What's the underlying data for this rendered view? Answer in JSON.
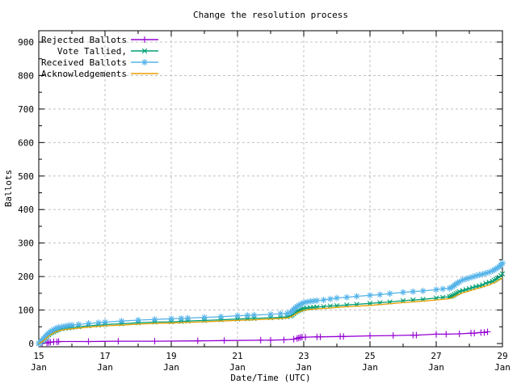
{
  "chart_data": {
    "type": "line",
    "title": "Change the resolution process",
    "xlabel": "Date/Time (UTC)",
    "ylabel": "Ballots",
    "xlim": [
      15,
      29
    ],
    "ylim": [
      0,
      900
    ],
    "grid": true,
    "legend_position": "top-left",
    "x_tick_month": "Jan",
    "x_major_ticks": [
      {
        "value": 15,
        "label": "15",
        "sublabel": "Jan"
      },
      {
        "value": 17,
        "label": "17",
        "sublabel": "Jan"
      },
      {
        "value": 19,
        "label": "19",
        "sublabel": "Jan"
      },
      {
        "value": 21,
        "label": "21",
        "sublabel": "Jan"
      },
      {
        "value": 23,
        "label": "23",
        "sublabel": "Jan"
      },
      {
        "value": 25,
        "label": "25",
        "sublabel": "Jan"
      },
      {
        "value": 27,
        "label": "27",
        "sublabel": "Jan"
      },
      {
        "value": 29,
        "label": "29",
        "sublabel": "Jan"
      }
    ],
    "x_minor_ticks": [
      16,
      18,
      20,
      22,
      24,
      26,
      28
    ],
    "y_ticks": [
      0,
      100,
      200,
      300,
      400,
      500,
      600,
      700,
      800,
      900
    ],
    "y_minor_ticks": [
      50,
      150,
      250,
      350,
      450,
      550,
      650,
      750,
      850
    ],
    "style": {
      "background": "#ffffff",
      "border_color": "#000000",
      "grid_color": "#c0c0c0",
      "text_color": "#000000"
    },
    "series": [
      {
        "name": "Rejected Ballots",
        "color": "#9400d3",
        "marker": "plus",
        "points": [
          [
            15.0,
            0
          ],
          [
            15.1,
            1
          ],
          [
            15.25,
            2
          ],
          [
            15.3,
            3
          ],
          [
            15.35,
            4
          ],
          [
            15.45,
            5
          ],
          [
            15.55,
            5
          ],
          [
            15.6,
            6
          ],
          [
            16.5,
            6
          ],
          [
            17.4,
            7
          ],
          [
            18.5,
            7
          ],
          [
            19.8,
            8
          ],
          [
            20.6,
            9
          ],
          [
            21.7,
            10
          ],
          [
            22.0,
            10
          ],
          [
            22.4,
            11
          ],
          [
            22.7,
            13
          ],
          [
            22.8,
            15
          ],
          [
            22.85,
            17
          ],
          [
            22.9,
            18
          ],
          [
            22.95,
            19
          ],
          [
            23.05,
            19
          ],
          [
            23.4,
            20
          ],
          [
            23.5,
            20
          ],
          [
            24.1,
            21
          ],
          [
            24.2,
            21
          ],
          [
            25.0,
            23
          ],
          [
            25.7,
            24
          ],
          [
            26.3,
            25
          ],
          [
            26.4,
            25
          ],
          [
            27.0,
            28
          ],
          [
            27.3,
            28
          ],
          [
            27.7,
            29
          ],
          [
            28.05,
            31
          ],
          [
            28.15,
            31
          ],
          [
            28.35,
            33
          ],
          [
            28.45,
            33
          ],
          [
            28.55,
            35
          ]
        ]
      },
      {
        "name": "Vote Tallied,",
        "color": "#009e73",
        "marker": "cross",
        "points": [
          [
            15.0,
            0
          ],
          [
            15.05,
            3
          ],
          [
            15.1,
            7
          ],
          [
            15.15,
            11
          ],
          [
            15.2,
            16
          ],
          [
            15.25,
            21
          ],
          [
            15.3,
            26
          ],
          [
            15.35,
            30
          ],
          [
            15.4,
            33
          ],
          [
            15.45,
            35
          ],
          [
            15.5,
            38
          ],
          [
            15.55,
            40
          ],
          [
            15.6,
            42
          ],
          [
            15.7,
            44
          ],
          [
            15.8,
            46
          ],
          [
            15.9,
            47
          ],
          [
            16.0,
            48
          ],
          [
            16.2,
            50
          ],
          [
            16.5,
            53
          ],
          [
            16.8,
            55
          ],
          [
            17.0,
            57
          ],
          [
            17.5,
            59
          ],
          [
            18.0,
            62
          ],
          [
            18.5,
            64
          ],
          [
            19.0,
            65
          ],
          [
            19.3,
            66
          ],
          [
            19.5,
            67
          ],
          [
            20.0,
            69
          ],
          [
            20.5,
            71
          ],
          [
            21.0,
            73
          ],
          [
            21.3,
            74
          ],
          [
            21.5,
            75
          ],
          [
            22.0,
            77
          ],
          [
            22.3,
            78
          ],
          [
            22.5,
            80
          ],
          [
            22.6,
            82
          ],
          [
            22.65,
            85
          ],
          [
            22.7,
            89
          ],
          [
            22.75,
            93
          ],
          [
            22.8,
            96
          ],
          [
            22.85,
            99
          ],
          [
            22.9,
            101
          ],
          [
            22.95,
            103
          ],
          [
            23.0,
            104
          ],
          [
            23.1,
            106
          ],
          [
            23.2,
            107
          ],
          [
            23.3,
            108
          ],
          [
            23.4,
            109
          ],
          [
            23.6,
            110
          ],
          [
            23.8,
            112
          ],
          [
            24.0,
            113
          ],
          [
            24.3,
            115
          ],
          [
            24.6,
            117
          ],
          [
            25.0,
            120
          ],
          [
            25.3,
            122
          ],
          [
            25.6,
            124
          ],
          [
            26.0,
            128
          ],
          [
            26.3,
            130
          ],
          [
            26.6,
            132
          ],
          [
            27.0,
            136
          ],
          [
            27.2,
            138
          ],
          [
            27.4,
            140
          ],
          [
            27.45,
            141
          ],
          [
            27.5,
            143
          ],
          [
            27.55,
            146
          ],
          [
            27.6,
            149
          ],
          [
            27.65,
            152
          ],
          [
            27.7,
            155
          ],
          [
            27.8,
            158
          ],
          [
            27.9,
            161
          ],
          [
            28.0,
            164
          ],
          [
            28.1,
            167
          ],
          [
            28.2,
            170
          ],
          [
            28.3,
            172
          ],
          [
            28.4,
            175
          ],
          [
            28.5,
            180
          ],
          [
            28.6,
            183
          ],
          [
            28.7,
            186
          ],
          [
            28.75,
            189
          ],
          [
            28.8,
            192
          ],
          [
            28.85,
            195
          ],
          [
            28.9,
            198
          ],
          [
            28.95,
            203
          ],
          [
            29.0,
            208
          ]
        ]
      },
      {
        "name": "Received Ballots",
        "color": "#56b4e9",
        "marker": "asterisk",
        "points": [
          [
            15.0,
            0
          ],
          [
            15.05,
            4
          ],
          [
            15.1,
            9
          ],
          [
            15.15,
            14
          ],
          [
            15.2,
            20
          ],
          [
            15.25,
            26
          ],
          [
            15.3,
            31
          ],
          [
            15.35,
            35
          ],
          [
            15.4,
            38
          ],
          [
            15.45,
            41
          ],
          [
            15.5,
            44
          ],
          [
            15.55,
            46
          ],
          [
            15.6,
            48
          ],
          [
            15.7,
            50
          ],
          [
            15.8,
            52
          ],
          [
            15.9,
            54
          ],
          [
            16.0,
            55
          ],
          [
            16.2,
            57
          ],
          [
            16.5,
            60
          ],
          [
            16.8,
            62
          ],
          [
            17.0,
            64
          ],
          [
            17.5,
            67
          ],
          [
            18.0,
            70
          ],
          [
            18.5,
            72
          ],
          [
            19.0,
            74
          ],
          [
            19.3,
            75
          ],
          [
            19.5,
            76
          ],
          [
            20.0,
            78
          ],
          [
            20.5,
            80
          ],
          [
            21.0,
            83
          ],
          [
            21.3,
            84
          ],
          [
            21.5,
            85
          ],
          [
            22.0,
            87
          ],
          [
            22.3,
            89
          ],
          [
            22.5,
            90
          ],
          [
            22.6,
            93
          ],
          [
            22.65,
            97
          ],
          [
            22.7,
            102
          ],
          [
            22.75,
            107
          ],
          [
            22.8,
            111
          ],
          [
            22.85,
            114
          ],
          [
            22.9,
            117
          ],
          [
            22.95,
            119
          ],
          [
            23.0,
            122
          ],
          [
            23.1,
            124
          ],
          [
            23.2,
            126
          ],
          [
            23.3,
            127
          ],
          [
            23.4,
            128
          ],
          [
            23.6,
            130
          ],
          [
            23.8,
            133
          ],
          [
            24.0,
            136
          ],
          [
            24.3,
            138
          ],
          [
            24.6,
            141
          ],
          [
            25.0,
            144
          ],
          [
            25.3,
            146
          ],
          [
            25.6,
            149
          ],
          [
            26.0,
            153
          ],
          [
            26.3,
            155
          ],
          [
            26.6,
            157
          ],
          [
            27.0,
            161
          ],
          [
            27.2,
            163
          ],
          [
            27.4,
            165
          ],
          [
            27.45,
            167
          ],
          [
            27.5,
            170
          ],
          [
            27.55,
            174
          ],
          [
            27.6,
            178
          ],
          [
            27.65,
            181
          ],
          [
            27.7,
            184
          ],
          [
            27.8,
            190
          ],
          [
            27.9,
            193
          ],
          [
            28.0,
            196
          ],
          [
            28.1,
            199
          ],
          [
            28.2,
            202
          ],
          [
            28.3,
            205
          ],
          [
            28.4,
            207
          ],
          [
            28.5,
            210
          ],
          [
            28.6,
            213
          ],
          [
            28.7,
            217
          ],
          [
            28.75,
            220
          ],
          [
            28.8,
            223
          ],
          [
            28.85,
            226
          ],
          [
            28.9,
            229
          ],
          [
            28.95,
            234
          ],
          [
            29.0,
            240
          ]
        ]
      },
      {
        "name": "Acknowledgements",
        "color": "#e69f00",
        "marker": "none",
        "points": [
          [
            15.0,
            0
          ],
          [
            15.1,
            5
          ],
          [
            15.2,
            13
          ],
          [
            15.3,
            22
          ],
          [
            15.4,
            29
          ],
          [
            15.5,
            34
          ],
          [
            15.6,
            38
          ],
          [
            15.8,
            42
          ],
          [
            16.0,
            44
          ],
          [
            16.5,
            49
          ],
          [
            17.0,
            53
          ],
          [
            17.5,
            55
          ],
          [
            18.0,
            58
          ],
          [
            18.5,
            60
          ],
          [
            19.0,
            61
          ],
          [
            19.5,
            63
          ],
          [
            20.0,
            65
          ],
          [
            20.5,
            67
          ],
          [
            21.0,
            69
          ],
          [
            21.5,
            71
          ],
          [
            22.0,
            73
          ],
          [
            22.5,
            76
          ],
          [
            22.65,
            81
          ],
          [
            22.8,
            91
          ],
          [
            22.9,
            96
          ],
          [
            23.0,
            99
          ],
          [
            23.2,
            102
          ],
          [
            23.5,
            104
          ],
          [
            23.8,
            106
          ],
          [
            24.0,
            108
          ],
          [
            24.5,
            111
          ],
          [
            25.0,
            114
          ],
          [
            25.5,
            118
          ],
          [
            26.0,
            122
          ],
          [
            26.5,
            126
          ],
          [
            27.0,
            130
          ],
          [
            27.4,
            134
          ],
          [
            27.55,
            140
          ],
          [
            27.7,
            148
          ],
          [
            27.8,
            151
          ],
          [
            28.0,
            157
          ],
          [
            28.2,
            163
          ],
          [
            28.4,
            169
          ],
          [
            28.6,
            175
          ],
          [
            28.8,
            184
          ],
          [
            29.0,
            196
          ]
        ]
      }
    ]
  }
}
